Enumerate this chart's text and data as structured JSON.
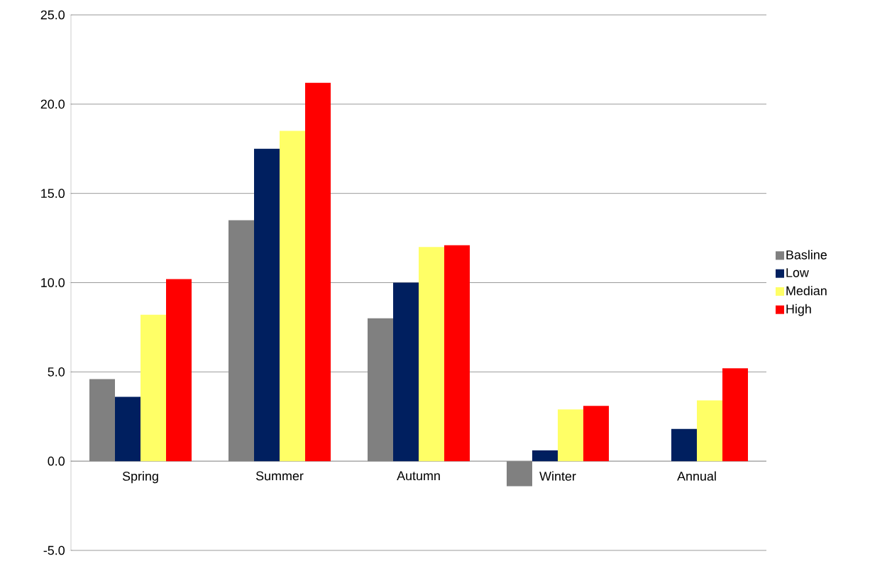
{
  "chart_data": {
    "type": "bar",
    "categories": [
      "Spring",
      "Summer",
      "Autumn",
      "Winter",
      "Annual"
    ],
    "series": [
      {
        "name": "Basline",
        "color": "#808080",
        "values": [
          4.6,
          13.5,
          8.0,
          -1.4,
          null
        ]
      },
      {
        "name": "Low",
        "color": "#001f5f",
        "values": [
          3.6,
          17.5,
          10.0,
          0.6,
          1.8
        ]
      },
      {
        "name": "Median",
        "color": "#ffff66",
        "values": [
          8.2,
          18.5,
          12.0,
          2.9,
          3.4
        ]
      },
      {
        "name": "High",
        "color": "#ff0000",
        "values": [
          10.2,
          21.2,
          12.1,
          3.1,
          5.2
        ]
      }
    ],
    "ylim": [
      -5,
      25
    ],
    "yticks": [
      {
        "value": -5,
        "label": "-5.0"
      },
      {
        "value": 0,
        "label": "0.0"
      },
      {
        "value": 5,
        "label": "5.0"
      },
      {
        "value": 10,
        "label": "10.0"
      },
      {
        "value": 15,
        "label": "15.0"
      },
      {
        "value": 20,
        "label": "20.0"
      },
      {
        "value": 25,
        "label": "25.0"
      }
    ],
    "grid": "y",
    "legend": "right"
  }
}
